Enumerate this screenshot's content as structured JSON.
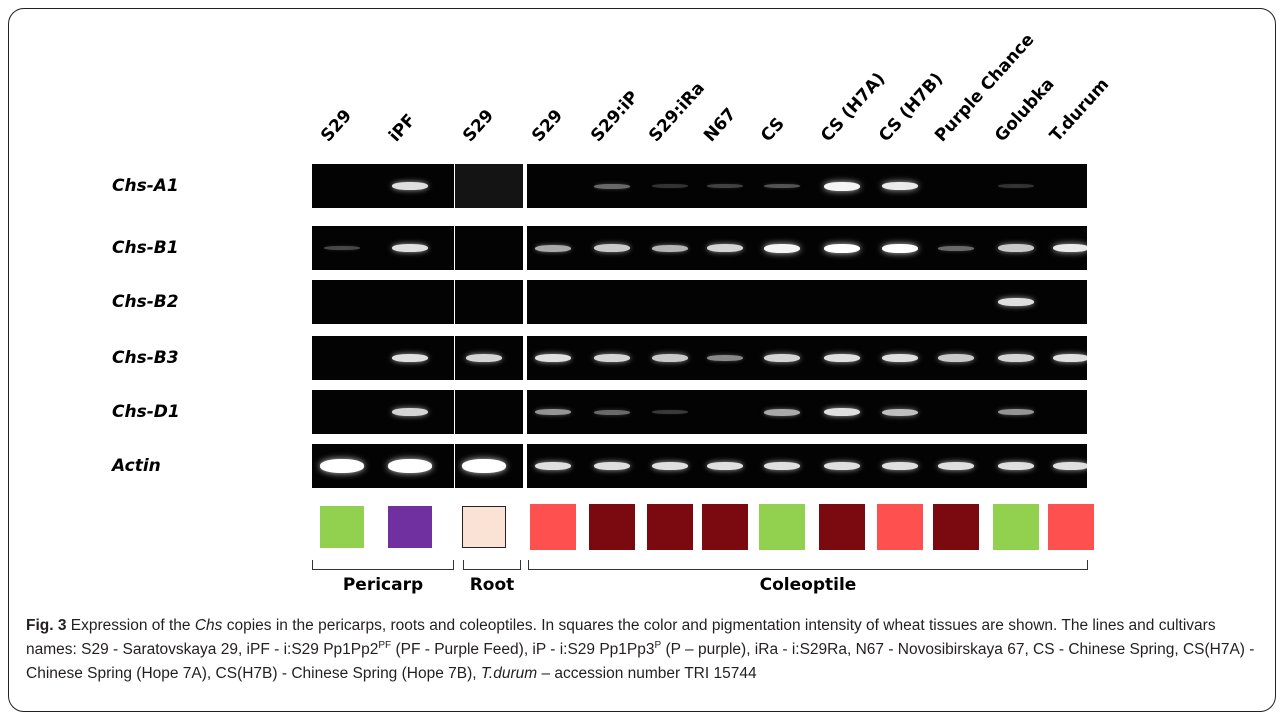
{
  "columns": [
    {
      "label": "S29"
    },
    {
      "label": "iPF"
    },
    {
      "label": "S29"
    },
    {
      "label": "S29"
    },
    {
      "label": "S29:iP"
    },
    {
      "label": "S29:iRa"
    },
    {
      "label": "N67"
    },
    {
      "label": "CS"
    },
    {
      "label": "CS (H7A)"
    },
    {
      "label": "CS (H7B)"
    },
    {
      "label": "Purple Chance"
    },
    {
      "label": "Golubka"
    },
    {
      "label": "T.durum"
    }
  ],
  "rows": [
    {
      "label": "Chs-A1",
      "bands": [
        0,
        0.85,
        0,
        0,
        0.3,
        0.05,
        0.12,
        0.2,
        0.95,
        0.9,
        0,
        0.05,
        0
      ]
    },
    {
      "label": "Chs-B1",
      "bands": [
        0.15,
        0.85,
        0,
        0.6,
        0.75,
        0.65,
        0.8,
        0.95,
        1.0,
        1.0,
        0.3,
        0.75,
        0.9
      ]
    },
    {
      "label": "Chs-B2",
      "bands": [
        0,
        0,
        0,
        0,
        0,
        0,
        0,
        0,
        0,
        0,
        0,
        0.85,
        0
      ]
    },
    {
      "label": "Chs-B3",
      "bands": [
        0,
        0.85,
        0.8,
        0.85,
        0.8,
        0.75,
        0.45,
        0.8,
        0.85,
        0.85,
        0.75,
        0.8,
        0.85
      ]
    },
    {
      "label": "Chs-D1",
      "bands": [
        0,
        0.8,
        0,
        0.5,
        0.3,
        0.08,
        0,
        0.6,
        0.85,
        0.7,
        0,
        0.5,
        0
      ]
    },
    {
      "label": "Actin",
      "bands": [
        1.0,
        1.0,
        1.0,
        0.85,
        0.85,
        0.85,
        0.85,
        0.85,
        0.85,
        0.85,
        0.85,
        0.85,
        0.85
      ]
    }
  ],
  "swatch_colors": [
    "#92d050",
    "#7030a0",
    "#fae3d5",
    "#ff5050",
    "#7a0a10",
    "#7a0a10",
    "#7a0a10",
    "#92d050",
    "#7a0a10",
    "#ff5050",
    "#7a0a10",
    "#92d050",
    "#ff5050"
  ],
  "groups": {
    "pericarp": "Pericarp",
    "root": "Root",
    "coleoptile": "Coleoptile"
  },
  "caption": {
    "fig_no": "Fig. 3",
    "part1": " Expression of the ",
    "chs_italic": "Chs",
    "part2": " copies in the pericarps, roots and coleoptiles. In squares the color and pigmentation intensity of wheat tissues are shown. The lines and cultivars names: S29 - Saratovskaya 29, iPF - i:S29 Pp1Pp2",
    "sup_pf": "PF",
    "part3": " (PF - Purple Feed), iP - i:S29 Pp1Pp3",
    "sup_p": "P",
    "part4": " (P – purple), iRa - i:S29Ra, N67 - Novosibirskaya 67, CS - Chinese Spring, CS(H7A) - Chinese Spring (Hope 7A), CS(H7B) - Chinese Spring (Hope 7B), ",
    "tdurum_italic": "T.durum",
    "part5": " – accession number TRI 15744"
  }
}
